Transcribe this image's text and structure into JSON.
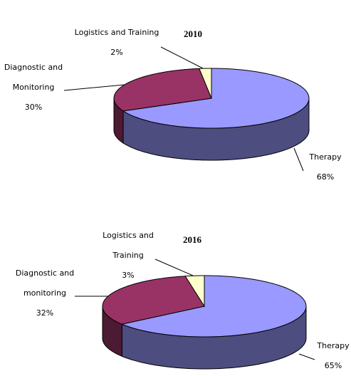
{
  "chart_data": [
    {
      "type": "pie",
      "title": "2010",
      "categories": [
        "Therapy",
        "Diagnostic and Monitoring",
        "Logistics and Training"
      ],
      "values": [
        68,
        30,
        2
      ],
      "value_labels": [
        "68%",
        "30%",
        "2%"
      ],
      "colors": [
        "#9999ff",
        "#993366",
        "#ffffcc"
      ]
    },
    {
      "type": "pie",
      "title": "2016",
      "categories": [
        "Therapy",
        "Diagnostic and monitoring",
        "Logistics and Training"
      ],
      "values": [
        65,
        32,
        3
      ],
      "value_labels": [
        "65%",
        "32%",
        "3%"
      ],
      "colors": [
        "#9999ff",
        "#993366",
        "#ffffcc"
      ]
    }
  ]
}
